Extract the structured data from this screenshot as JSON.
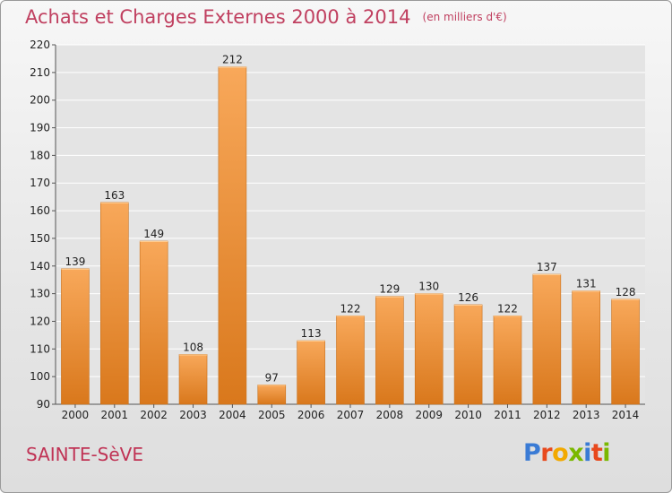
{
  "title": "Achats et Charges Externes 2000 à 2014",
  "units": "(en milliers d'€)",
  "city": "SAINTE-SèVE",
  "logo": {
    "letters": [
      "P",
      "r",
      "o",
      "x",
      "i",
      "t",
      "i"
    ],
    "colors": [
      "#3a7bd5",
      "#e8491d",
      "#f2a900",
      "#7ab800",
      "#3a7bd5",
      "#e8491d",
      "#7ab800"
    ]
  },
  "colors": {
    "bar_top": "#f8a85a",
    "bar_bottom": "#d9781c",
    "grid": "#ffffff"
  },
  "chart_data": {
    "type": "bar",
    "categories": [
      "2000",
      "2001",
      "2002",
      "2003",
      "2004",
      "2005",
      "2006",
      "2007",
      "2008",
      "2009",
      "2010",
      "2011",
      "2012",
      "2013",
      "2014"
    ],
    "values": [
      139,
      163,
      149,
      108,
      212,
      97,
      113,
      122,
      129,
      130,
      126,
      122,
      137,
      131,
      128
    ],
    "ylim": [
      90,
      220
    ],
    "yticks": [
      90,
      100,
      110,
      120,
      130,
      140,
      150,
      160,
      170,
      180,
      190,
      200,
      210,
      220
    ],
    "grid": true
  }
}
